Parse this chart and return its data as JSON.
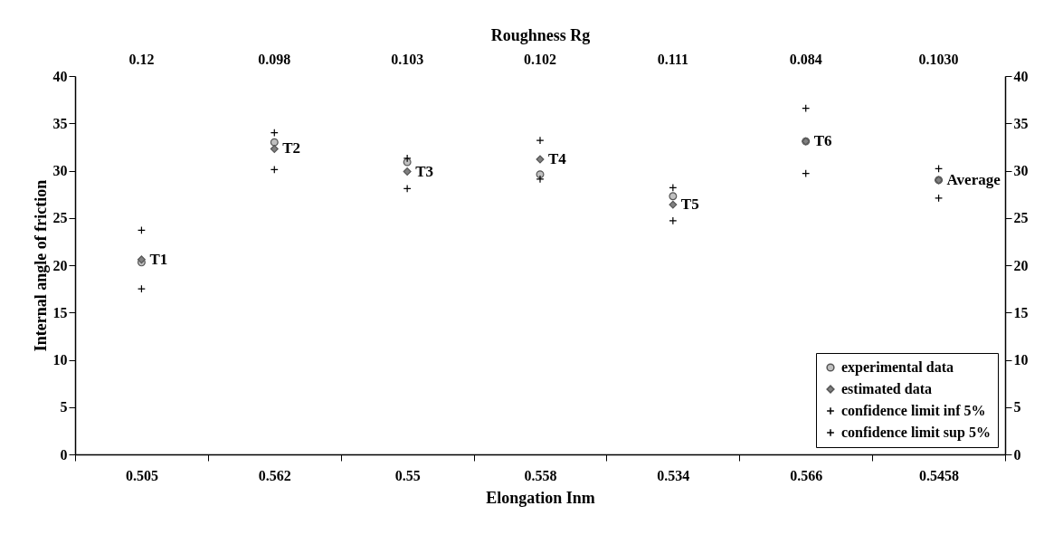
{
  "chart_data": {
    "type": "scatter",
    "xlabel": "Elongation Inm",
    "x2label": "Roughness Rg",
    "ylabel": "Internal angle of friction",
    "categories": [
      "0.505",
      "0.562",
      "0.55",
      "0.558",
      "0.534",
      "0.566",
      "0.5458"
    ],
    "ylim": [
      0,
      40
    ],
    "yticks": [
      0,
      5,
      10,
      15,
      20,
      25,
      30,
      35,
      40
    ],
    "y2lim": [
      0,
      40
    ],
    "y2ticks": [
      0,
      5,
      10,
      15,
      20,
      25,
      30,
      35,
      40
    ],
    "grid": false,
    "legend": "bottom right",
    "series": [
      {
        "name": "experimental data",
        "color": "#c0c0c0",
        "marker": "circle",
        "values": [
          20.3,
          33.0,
          30.9,
          29.6,
          27.3,
          33.1,
          29.0
        ]
      },
      {
        "name": "estimated data",
        "color": "#808080",
        "marker": "diamond",
        "values": [
          20.6,
          32.3,
          29.9,
          31.2,
          26.4,
          33.1,
          29.0
        ]
      },
      {
        "name": "confidence limit inf 5%",
        "color": "#000000",
        "marker": "cross",
        "values": [
          17.5,
          30.1,
          28.1,
          29.1,
          24.7,
          29.7,
          27.1
        ]
      },
      {
        "name": "confidence limit sup 5%",
        "color": "#000000",
        "marker": "cross",
        "values": [
          23.7,
          34.0,
          31.3,
          33.2,
          28.2,
          36.6,
          30.2
        ]
      }
    ],
    "annotations": [
      {
        "text": "T1",
        "x": "0.505",
        "y": 20.6
      },
      {
        "text": "T2",
        "x": "0.562",
        "y": 32.3
      },
      {
        "text": "T3",
        "x": "0.55",
        "y": 29.9
      },
      {
        "text": "T4",
        "x": "0.558",
        "y": 31.2
      },
      {
        "text": "T5",
        "x": "0.534",
        "y": 26.4
      },
      {
        "text": "T6",
        "x": "0.566",
        "y": 33.1
      },
      {
        "text": "Average",
        "x": "0.5458",
        "y": 29.0
      },
      "0.12",
      "0.098",
      "0.103",
      "0.102",
      "0.111",
      "0.084",
      "0.1030"
    ]
  }
}
